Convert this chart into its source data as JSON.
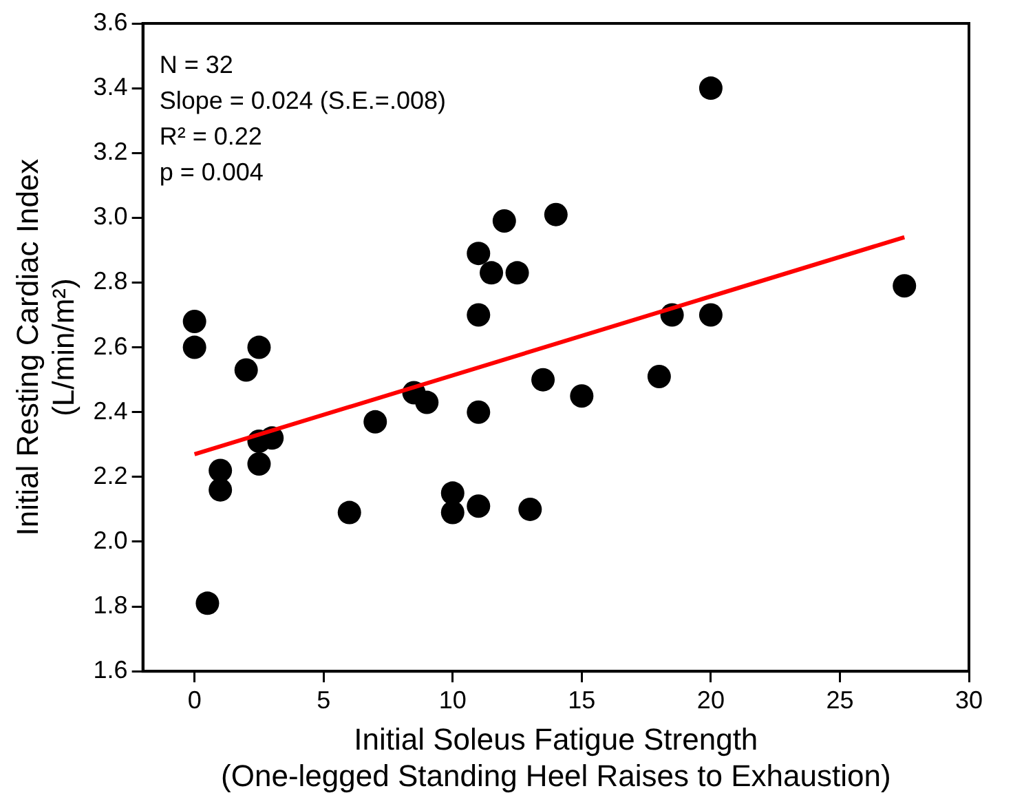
{
  "chart_data": {
    "type": "scatter",
    "xlabel": "Initial Soleus Fatigue Strength\n(One-legged Standing Heel Raises to Exhaustion)",
    "ylabel": "Initial Resting Cardiac Index\n(L/min/m²)",
    "xlim": [
      -2,
      30
    ],
    "xticks": [
      0,
      5,
      10,
      15,
      20,
      25,
      30
    ],
    "ylim": [
      1.6,
      3.6
    ],
    "yticks": [
      1.6,
      1.8,
      {
        "value": 2,
        "label": "2.0"
      },
      2.2,
      2.4,
      2.6,
      2.8,
      {
        "value": 3,
        "label": "3.0"
      },
      3.2,
      3.4,
      3.6
    ],
    "grid": false,
    "legend": false,
    "annotations": [
      "N = 32",
      "Slope = 0.024 (S.E.=.008)",
      "R² = 0.22",
      "p = 0.004"
    ],
    "series": [
      {
        "type": "scatter",
        "color": "#000000",
        "marker": "circle",
        "x": [
          0,
          0,
          0.5,
          1,
          1,
          2,
          2.5,
          2.5,
          2.5,
          3,
          6,
          7,
          8.5,
          9,
          10,
          10,
          11,
          11,
          11,
          11,
          11.5,
          12,
          12.5,
          13,
          13.5,
          14,
          15,
          18,
          18.5,
          20,
          20,
          27.5
        ],
        "values": [
          2.68,
          2.6,
          1.81,
          2.22,
          2.16,
          2.53,
          2.6,
          2.31,
          2.24,
          2.32,
          2.09,
          2.37,
          2.46,
          2.43,
          2.15,
          2.09,
          2.89,
          2.7,
          2.4,
          2.11,
          2.83,
          2.99,
          2.83,
          2.1,
          2.5,
          3.01,
          2.45,
          2.51,
          2.7,
          2.7,
          3.4,
          2.79
        ]
      },
      {
        "type": "line",
        "color": "#ff0000",
        "marker": "none",
        "line_style": "solid",
        "x": [
          0,
          27.5
        ],
        "values": [
          2.27,
          2.94
        ]
      }
    ]
  }
}
